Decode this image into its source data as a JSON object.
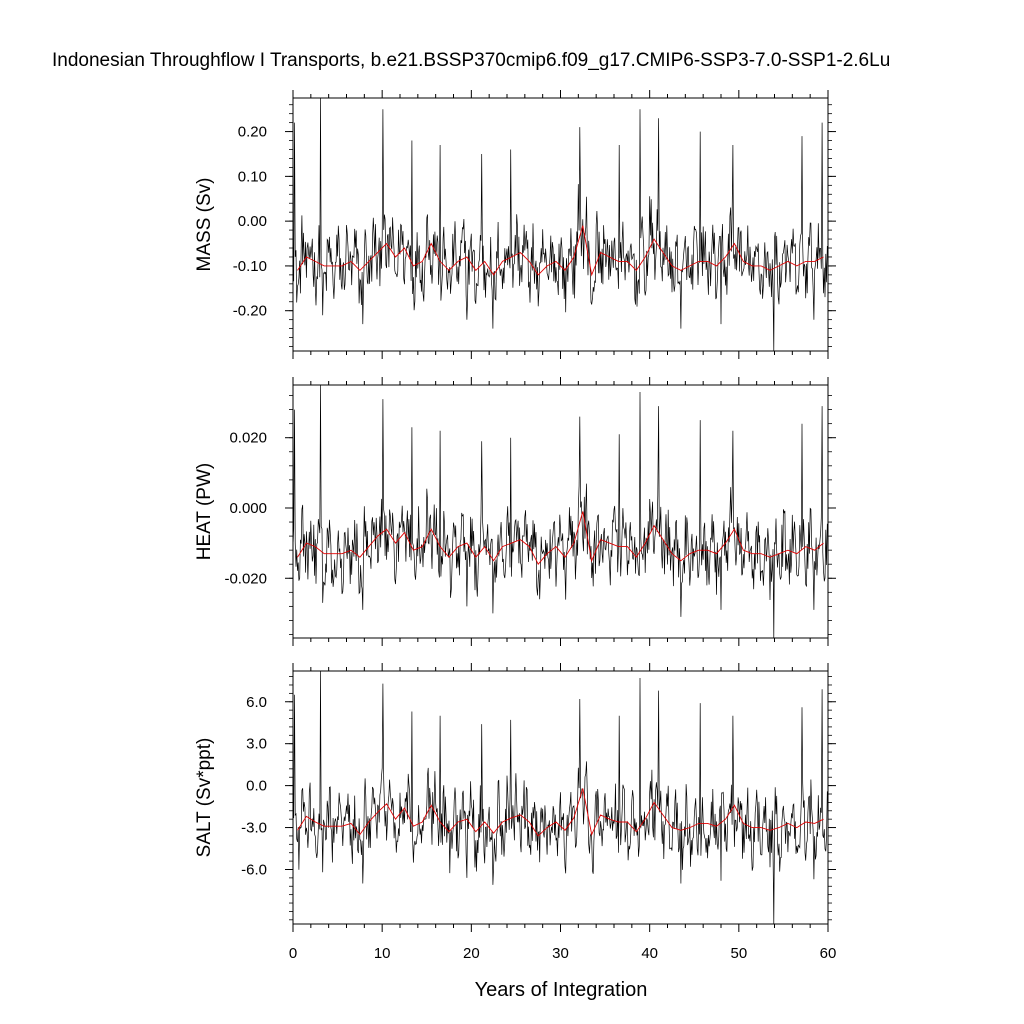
{
  "chart_data": {
    "type": "line",
    "title": "Indonesian Throughflow I Transports, b.e21.BSSP370cmip6.f09_g17.CMIP6-SSP3-7.0-SSP1-2.6Lu",
    "xlabel": "Years of Integration",
    "xlim": [
      0,
      60
    ],
    "x_ticks": [
      "0",
      "10",
      "20",
      "30",
      "40",
      "50",
      "60"
    ],
    "x_tick_values": [
      0,
      10,
      20,
      30,
      40,
      50,
      60
    ],
    "grid": false,
    "series_colors": {
      "monthly": "#000000",
      "annual": "#e00000"
    },
    "panels": [
      {
        "ylabel": "MASS (Sv)",
        "ylim": [
          -0.29,
          0.275
        ],
        "y_ticks": [
          "0.20",
          "0.10",
          "0.00",
          "-0.10",
          "-0.20"
        ],
        "y_tick_values": [
          0.2,
          0.1,
          0.0,
          -0.1,
          -0.2
        ],
        "minor_step": 0.02,
        "annual_x": [
          0.5,
          1.5,
          2.5,
          3.5,
          4.5,
          5.5,
          6.5,
          7.5,
          8.5,
          9.5,
          10.5,
          11.5,
          12.5,
          13.5,
          14.5,
          15.5,
          16.5,
          17.5,
          18.5,
          19.5,
          20.5,
          21.5,
          22.5,
          23.5,
          24.5,
          25.5,
          26.5,
          27.5,
          28.5,
          29.5,
          30.5,
          31.5,
          32.5,
          33.5,
          34.5,
          35.5,
          36.5,
          37.5,
          38.5,
          39.5,
          40.5,
          41.5,
          42.5,
          43.5,
          44.5,
          45.5,
          46.5,
          47.5,
          48.5,
          49.5,
          50.5,
          51.5,
          52.5,
          53.5,
          54.5,
          55.5,
          56.5,
          57.5,
          58.5,
          59.5
        ],
        "annual_y": [
          -0.11,
          -0.08,
          -0.09,
          -0.1,
          -0.1,
          -0.1,
          -0.09,
          -0.11,
          -0.09,
          -0.07,
          -0.05,
          -0.08,
          -0.06,
          -0.1,
          -0.09,
          -0.05,
          -0.09,
          -0.11,
          -0.09,
          -0.08,
          -0.11,
          -0.09,
          -0.12,
          -0.09,
          -0.08,
          -0.07,
          -0.09,
          -0.12,
          -0.1,
          -0.09,
          -0.11,
          -0.08,
          -0.01,
          -0.12,
          -0.07,
          -0.08,
          -0.09,
          -0.09,
          -0.11,
          -0.08,
          -0.04,
          -0.07,
          -0.1,
          -0.11,
          -0.1,
          -0.09,
          -0.09,
          -0.1,
          -0.08,
          -0.05,
          -0.09,
          -0.1,
          -0.1,
          -0.11,
          -0.1,
          -0.09,
          -0.1,
          -0.09,
          -0.09,
          -0.08
        ],
        "monthly_spikes": [
          {
            "x": 0.2,
            "y": 0.22
          },
          {
            "x": 3.1,
            "y": 0.275
          },
          {
            "x": 10.1,
            "y": 0.25
          },
          {
            "x": 13.3,
            "y": 0.18
          },
          {
            "x": 16.5,
            "y": 0.17
          },
          {
            "x": 21.2,
            "y": 0.15
          },
          {
            "x": 24.4,
            "y": 0.16
          },
          {
            "x": 32.2,
            "y": 0.21
          },
          {
            "x": 36.6,
            "y": 0.17
          },
          {
            "x": 38.9,
            "y": 0.25
          },
          {
            "x": 41.0,
            "y": 0.23
          },
          {
            "x": 45.7,
            "y": 0.2
          },
          {
            "x": 49.3,
            "y": 0.17
          },
          {
            "x": 57.1,
            "y": 0.19
          },
          {
            "x": 59.3,
            "y": 0.22
          }
        ],
        "monthly_dips": [
          {
            "x": 3.3,
            "y": -0.21
          },
          {
            "x": 7.8,
            "y": -0.23
          },
          {
            "x": 19.5,
            "y": -0.22
          },
          {
            "x": 22.4,
            "y": -0.24
          },
          {
            "x": 43.5,
            "y": -0.24
          },
          {
            "x": 48.0,
            "y": -0.23
          },
          {
            "x": 53.9,
            "y": -0.29
          },
          {
            "x": 58.4,
            "y": -0.22
          }
        ]
      },
      {
        "ylabel": "HEAT (PW)",
        "ylim": [
          -0.037,
          0.035
        ],
        "y_ticks": [
          "0.020",
          "0.000",
          "-0.020"
        ],
        "y_tick_values": [
          0.02,
          0.0,
          -0.02
        ],
        "minor_step": 0.004,
        "annual_x": [
          0.5,
          1.5,
          2.5,
          3.5,
          4.5,
          5.5,
          6.5,
          7.5,
          8.5,
          9.5,
          10.5,
          11.5,
          12.5,
          13.5,
          14.5,
          15.5,
          16.5,
          17.5,
          18.5,
          19.5,
          20.5,
          21.5,
          22.5,
          23.5,
          24.5,
          25.5,
          26.5,
          27.5,
          28.5,
          29.5,
          30.5,
          31.5,
          32.5,
          33.5,
          34.5,
          35.5,
          36.5,
          37.5,
          38.5,
          39.5,
          40.5,
          41.5,
          42.5,
          43.5,
          44.5,
          45.5,
          46.5,
          47.5,
          48.5,
          49.5,
          50.5,
          51.5,
          52.5,
          53.5,
          54.5,
          55.5,
          56.5,
          57.5,
          58.5,
          59.5
        ],
        "annual_y": [
          -0.014,
          -0.01,
          -0.011,
          -0.013,
          -0.013,
          -0.013,
          -0.012,
          -0.014,
          -0.011,
          -0.008,
          -0.006,
          -0.01,
          -0.007,
          -0.012,
          -0.011,
          -0.006,
          -0.011,
          -0.014,
          -0.011,
          -0.01,
          -0.014,
          -0.011,
          -0.015,
          -0.011,
          -0.01,
          -0.009,
          -0.011,
          -0.016,
          -0.013,
          -0.011,
          -0.014,
          -0.01,
          -0.001,
          -0.015,
          -0.009,
          -0.01,
          -0.011,
          -0.011,
          -0.014,
          -0.01,
          -0.005,
          -0.009,
          -0.013,
          -0.015,
          -0.013,
          -0.012,
          -0.012,
          -0.013,
          -0.01,
          -0.006,
          -0.012,
          -0.013,
          -0.013,
          -0.014,
          -0.013,
          -0.012,
          -0.013,
          -0.011,
          -0.012,
          -0.01
        ],
        "monthly_spikes": [
          {
            "x": 0.2,
            "y": 0.028
          },
          {
            "x": 3.1,
            "y": 0.035
          },
          {
            "x": 10.1,
            "y": 0.031
          },
          {
            "x": 13.3,
            "y": 0.023
          },
          {
            "x": 16.5,
            "y": 0.022
          },
          {
            "x": 21.2,
            "y": 0.019
          },
          {
            "x": 24.4,
            "y": 0.02
          },
          {
            "x": 32.2,
            "y": 0.026
          },
          {
            "x": 36.6,
            "y": 0.021
          },
          {
            "x": 38.9,
            "y": 0.033
          },
          {
            "x": 41.0,
            "y": 0.029
          },
          {
            "x": 45.7,
            "y": 0.025
          },
          {
            "x": 49.3,
            "y": 0.022
          },
          {
            "x": 57.1,
            "y": 0.024
          },
          {
            "x": 59.3,
            "y": 0.029
          }
        ],
        "monthly_dips": [
          {
            "x": 3.3,
            "y": -0.027
          },
          {
            "x": 7.8,
            "y": -0.029
          },
          {
            "x": 19.5,
            "y": -0.028
          },
          {
            "x": 22.4,
            "y": -0.03
          },
          {
            "x": 43.5,
            "y": -0.031
          },
          {
            "x": 48.0,
            "y": -0.029
          },
          {
            "x": 53.9,
            "y": -0.037
          },
          {
            "x": 58.4,
            "y": -0.029
          }
        ]
      },
      {
        "ylabel": "SALT (Sv*ppt)",
        "ylim": [
          -9.9,
          8.2
        ],
        "y_ticks": [
          "6.0",
          "3.0",
          "0.0",
          "-3.0",
          "-6.0"
        ],
        "y_tick_values": [
          6.0,
          3.0,
          0.0,
          -3.0,
          -6.0
        ],
        "minor_step": 0.6,
        "annual_x": [
          0.5,
          1.5,
          2.5,
          3.5,
          4.5,
          5.5,
          6.5,
          7.5,
          8.5,
          9.5,
          10.5,
          11.5,
          12.5,
          13.5,
          14.5,
          15.5,
          16.5,
          17.5,
          18.5,
          19.5,
          20.5,
          21.5,
          22.5,
          23.5,
          24.5,
          25.5,
          26.5,
          27.5,
          28.5,
          29.5,
          30.5,
          31.5,
          32.5,
          33.5,
          34.5,
          35.5,
          36.5,
          37.5,
          38.5,
          39.5,
          40.5,
          41.5,
          42.5,
          43.5,
          44.5,
          45.5,
          46.5,
          47.5,
          48.5,
          49.5,
          50.5,
          51.5,
          52.5,
          53.5,
          54.5,
          55.5,
          56.5,
          57.5,
          58.5,
          59.5
        ],
        "annual_y": [
          -3.2,
          -2.2,
          -2.6,
          -2.9,
          -2.9,
          -2.9,
          -2.7,
          -3.5,
          -2.6,
          -1.9,
          -1.3,
          -2.4,
          -1.6,
          -2.9,
          -2.6,
          -1.4,
          -2.6,
          -3.3,
          -2.6,
          -2.4,
          -3.3,
          -2.6,
          -3.4,
          -2.6,
          -2.3,
          -2.1,
          -2.6,
          -3.6,
          -3.0,
          -2.6,
          -3.2,
          -2.3,
          -0.2,
          -3.5,
          -2.1,
          -2.4,
          -2.6,
          -2.6,
          -3.3,
          -2.4,
          -1.2,
          -2.1,
          -3.0,
          -3.2,
          -3.0,
          -2.7,
          -2.7,
          -2.9,
          -2.4,
          -1.4,
          -2.7,
          -3.0,
          -3.0,
          -3.2,
          -3.0,
          -2.7,
          -3.0,
          -2.6,
          -2.7,
          -2.4
        ],
        "monthly_spikes": [
          {
            "x": 0.2,
            "y": 6.5
          },
          {
            "x": 3.1,
            "y": 8.2
          },
          {
            "x": 10.1,
            "y": 7.3
          },
          {
            "x": 13.3,
            "y": 5.3
          },
          {
            "x": 16.5,
            "y": 5.0
          },
          {
            "x": 21.2,
            "y": 4.4
          },
          {
            "x": 24.4,
            "y": 4.7
          },
          {
            "x": 32.2,
            "y": 6.2
          },
          {
            "x": 36.6,
            "y": 5.0
          },
          {
            "x": 38.9,
            "y": 7.7
          },
          {
            "x": 41.0,
            "y": 6.8
          },
          {
            "x": 45.7,
            "y": 5.9
          },
          {
            "x": 49.3,
            "y": 5.0
          },
          {
            "x": 57.1,
            "y": 5.6
          },
          {
            "x": 59.3,
            "y": 6.9
          }
        ],
        "monthly_dips": [
          {
            "x": 3.3,
            "y": -6.2
          },
          {
            "x": 7.8,
            "y": -7.0
          },
          {
            "x": 19.5,
            "y": -6.6
          },
          {
            "x": 22.4,
            "y": -7.1
          },
          {
            "x": 43.5,
            "y": -7.0
          },
          {
            "x": 48.0,
            "y": -6.8
          },
          {
            "x": 53.9,
            "y": -9.9
          },
          {
            "x": 58.4,
            "y": -6.7
          }
        ]
      }
    ]
  }
}
